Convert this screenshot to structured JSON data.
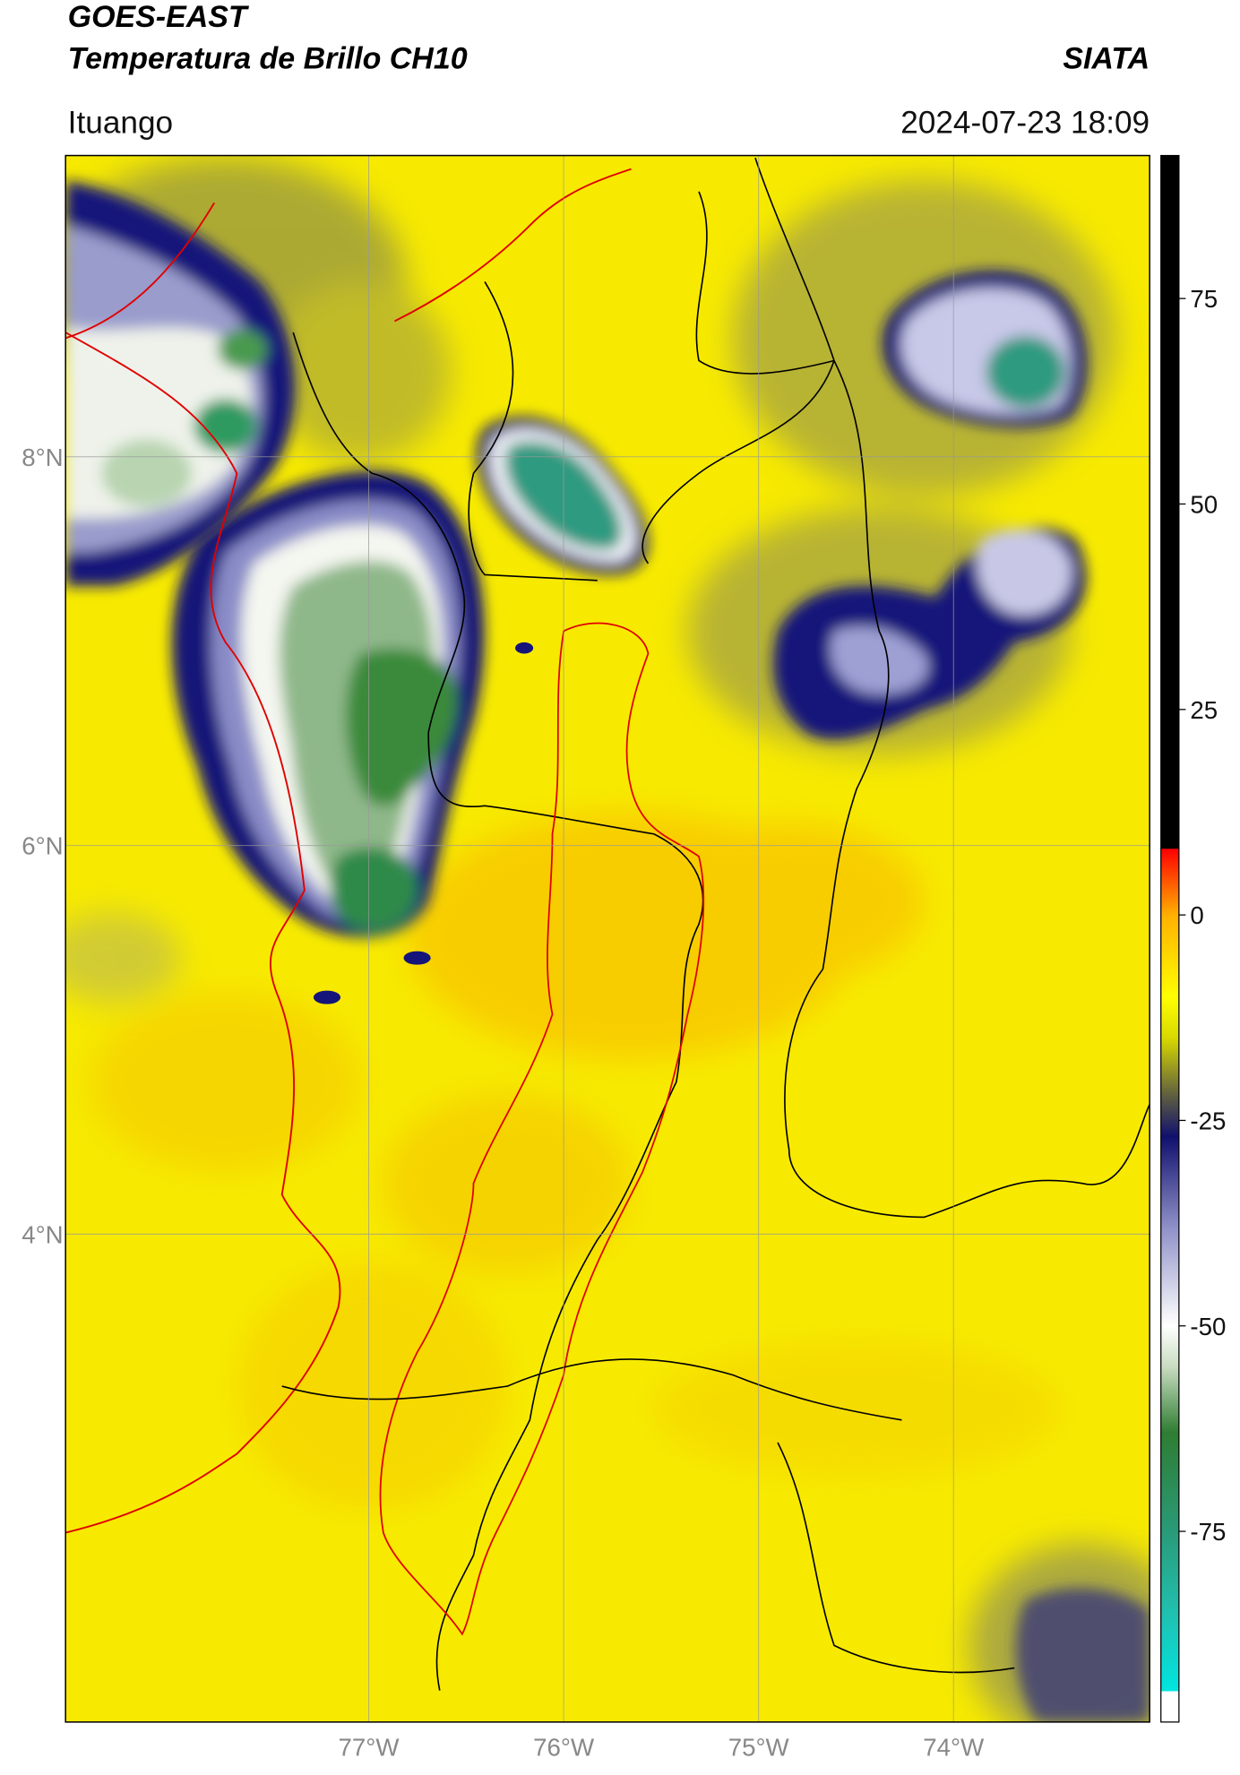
{
  "header": {
    "title": "GOES-EAST",
    "subtitle": "Temperatura de Brillo CH10",
    "source": "SIATA",
    "location": "Ituango",
    "datetime": "2024-07-23 18:09"
  },
  "map": {
    "lat_range": [
      1.49,
      9.55
    ],
    "lon_range": [
      -78.555,
      -72.994
    ],
    "lat_ticks": [
      {
        "value": 8,
        "label": "8°N"
      },
      {
        "value": 6,
        "label": "6°N"
      },
      {
        "value": 4,
        "label": "4°N"
      }
    ],
    "lon_ticks": [
      {
        "value": -77,
        "label": "77°W"
      },
      {
        "value": -76,
        "label": "76°W"
      },
      {
        "value": -75,
        "label": "75°W"
      },
      {
        "value": -74,
        "label": "74°W"
      }
    ],
    "grid": true
  },
  "colorbar": {
    "range": [
      -98.2,
      92.4
    ],
    "ticks": [
      75,
      50,
      25,
      0,
      -25,
      -50,
      -75
    ],
    "colorscale": [
      {
        "value": -98.2,
        "color": "#ffffff"
      },
      {
        "value": -94.5,
        "color": "#ffffff"
      },
      {
        "value": -94.4,
        "color": "#00e5e0"
      },
      {
        "value": -85,
        "color": "#20c0b0"
      },
      {
        "value": -75,
        "color": "#2a9a78"
      },
      {
        "value": -63,
        "color": "#2e7d32"
      },
      {
        "value": -55,
        "color": "#c9dcc0"
      },
      {
        "value": -50,
        "color": "#ffffff"
      },
      {
        "value": -38,
        "color": "#8f90c8"
      },
      {
        "value": -27,
        "color": "#10106e"
      },
      {
        "value": -22,
        "color": "#5e5e40"
      },
      {
        "value": -15,
        "color": "#d8d800"
      },
      {
        "value": -10,
        "color": "#ffff00"
      },
      {
        "value": 0,
        "color": "#ffb000"
      },
      {
        "value": 8,
        "color": "#ff0000"
      },
      {
        "value": 8.1,
        "color": "#000000"
      },
      {
        "value": 92.4,
        "color": "#000000"
      }
    ]
  }
}
